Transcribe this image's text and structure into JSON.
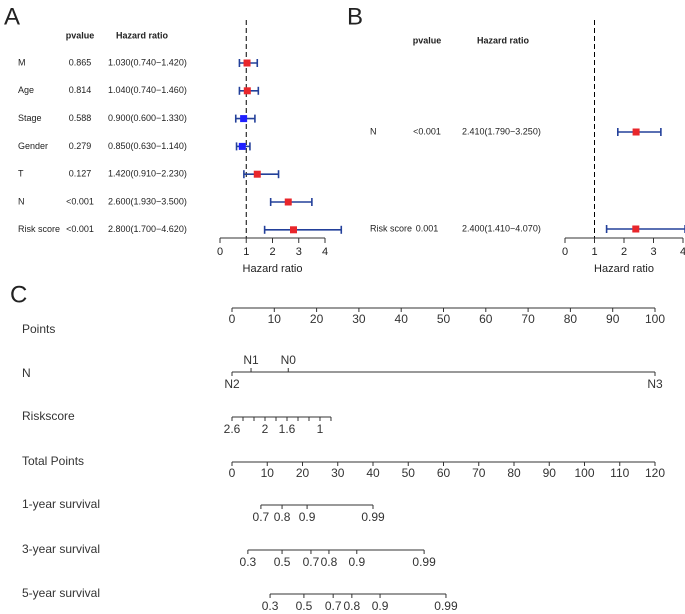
{
  "chart_data": [
    {
      "type": "forest",
      "panel": "A",
      "header_pvalue": "pvalue",
      "header_hr": "Hazard ratio",
      "xlabel": "Hazard ratio",
      "categories": [
        "M",
        "Age",
        "Stage",
        "Gender",
        "T",
        "N",
        "Risk score"
      ],
      "pvalues": [
        "0.865",
        "0.814",
        "0.588",
        "0.279",
        "0.127",
        "<0.001",
        "<0.001"
      ],
      "hr_text": [
        "1.030(0.740−1.420)",
        "1.040(0.740−1.460)",
        "0.900(0.600−1.330)",
        "0.850(0.630−1.140)",
        "1.420(0.910−2.230)",
        "2.600(1.930−3.500)",
        "2.800(1.700−4.620)"
      ],
      "values": [
        1.03,
        1.04,
        0.9,
        0.85,
        1.42,
        2.6,
        2.8
      ],
      "lower": [
        0.74,
        0.74,
        0.6,
        0.63,
        0.91,
        1.93,
        1.7
      ],
      "upper": [
        1.42,
        1.46,
        1.33,
        1.14,
        2.23,
        3.5,
        4.62
      ],
      "colors": [
        "#e8262b",
        "#e8262b",
        "#1f1fff",
        "#1f1fff",
        "#e8262b",
        "#e8262b",
        "#e8262b"
      ],
      "ci_color": "#23409a",
      "xlim": [
        0,
        4
      ],
      "xticks": [
        0,
        1,
        2,
        3,
        4
      ],
      "ref": 1
    },
    {
      "type": "forest",
      "panel": "B",
      "header_pvalue": "pvalue",
      "header_hr": "Hazard ratio",
      "xlabel": "Hazard ratio",
      "categories": [
        "N",
        "Risk score"
      ],
      "pvalues": [
        "<0.001",
        "0.001"
      ],
      "hr_text": [
        "2.410(1.790−3.250)",
        "2.400(1.410−4.070)"
      ],
      "values": [
        2.41,
        2.4
      ],
      "lower": [
        1.79,
        1.41
      ],
      "upper": [
        3.25,
        4.07
      ],
      "colors": [
        "#e8262b",
        "#e8262b"
      ],
      "ci_color": "#23409a",
      "xlim": [
        0,
        4
      ],
      "xticks": [
        0,
        1,
        2,
        3,
        4
      ],
      "ref": 1
    },
    {
      "type": "nomogram",
      "panel": "C",
      "rows": [
        {
          "name": "Points",
          "xlim": [
            0,
            100
          ],
          "xticks": [
            0,
            10,
            20,
            30,
            40,
            50,
            60,
            70,
            80,
            90,
            100
          ]
        },
        {
          "name": "N",
          "ticks": [
            {
              "value": 0,
              "label": "N2",
              "side": "below"
            },
            {
              "value": 4.5,
              "label": "N1",
              "side": "above"
            },
            {
              "value": 13.3,
              "label": "N0",
              "side": "above"
            },
            {
              "value": 100,
              "label": "N3",
              "side": "below"
            }
          ]
        },
        {
          "name": "Riskscore",
          "ticks": [
            {
              "value": 0,
              "label": "2.6"
            },
            {
              "value": 2.6,
              "label": null
            },
            {
              "value": 5.2,
              "label": null
            },
            {
              "value": 7.8,
              "label": "2"
            },
            {
              "value": 10.4,
              "label": null
            },
            {
              "value": 13,
              "label": "1.6"
            },
            {
              "value": 15.6,
              "label": null
            },
            {
              "value": 18.2,
              "label": null
            },
            {
              "value": 20.8,
              "label": "1"
            },
            {
              "value": 23.4,
              "label": null
            }
          ]
        },
        {
          "name": "Total Points",
          "xlim": [
            0,
            120
          ],
          "xticks": [
            0,
            10,
            20,
            30,
            40,
            50,
            60,
            70,
            80,
            90,
            100,
            110,
            120
          ]
        },
        {
          "name": "1-year survival",
          "ticks": [
            {
              "value": 8.2,
              "label": "0.7"
            },
            {
              "value": 14.2,
              "label": "0.8"
            },
            {
              "value": 21.3,
              "label": "0.9"
            },
            {
              "value": 40,
              "label": "0.99"
            }
          ]
        },
        {
          "name": "3-year survival",
          "ticks": [
            {
              "value": 4.5,
              "label": "0.3"
            },
            {
              "value": 14.2,
              "label": "0.5"
            },
            {
              "value": 22.4,
              "label": "0.7"
            },
            {
              "value": 27.5,
              "label": "0.8"
            },
            {
              "value": 35.4,
              "label": "0.9"
            },
            {
              "value": 54.5,
              "label": "0.99"
            }
          ]
        },
        {
          "name": "5-year survival",
          "ticks": [
            {
              "value": 10.8,
              "label": "0.3"
            },
            {
              "value": 20.4,
              "label": "0.5"
            },
            {
              "value": 28.7,
              "label": "0.7"
            },
            {
              "value": 34,
              "label": "0.8"
            },
            {
              "value": 42,
              "label": "0.9"
            },
            {
              "value": 60.7,
              "label": "0.99"
            }
          ]
        }
      ]
    }
  ]
}
